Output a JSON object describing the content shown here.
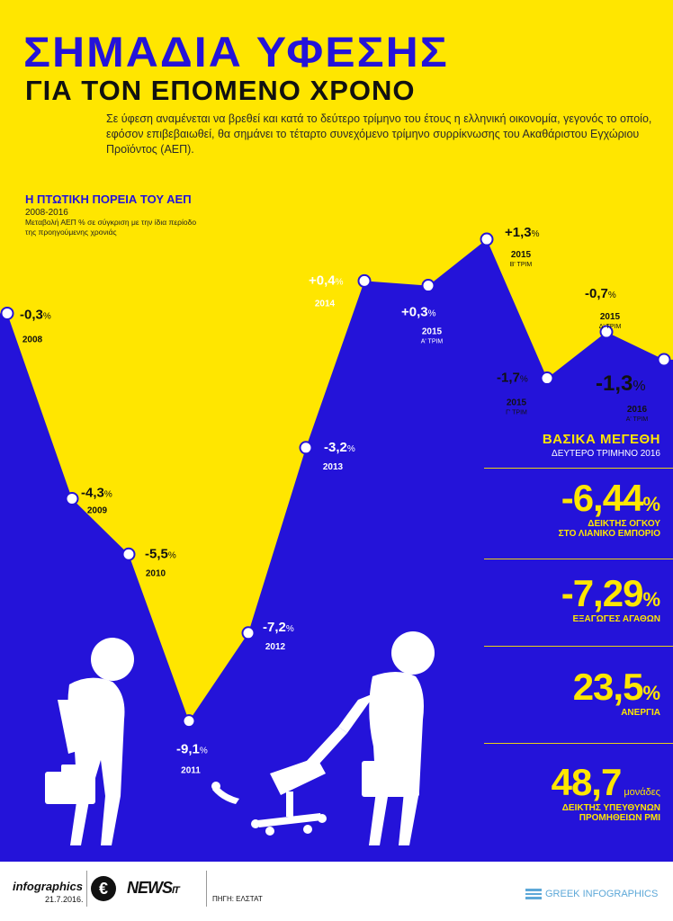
{
  "header": {
    "title_line1": "ΣΗΜΑΔΙΑ ΥΦΕΣΗΣ",
    "title_line2": "ΓΙΑ ΤΟΝ ΕΠΟΜΕΝΟ ΧΡΟΝΟ",
    "intro": "Σε ύφεση αναμένεται να βρεθεί και κατά το δεύτερο τρίμηνο του έτους η ελληνική οικονομία, γεγονός το οποίο, εφόσον επιβεβαιωθεί, θα σημάνει το τέταρτο συνεχόμενο τρίμηνο συρρίκνωσης του Ακαθάριστου Εγχώριου Προϊόντος (ΑΕΠ)."
  },
  "colors": {
    "yellow": "#ffe600",
    "blue": "#2413d9",
    "dark": "#111111",
    "white": "#ffffff"
  },
  "chart_data": {
    "type": "line",
    "title": "Η ΠΤΩΤΙΚΗ ΠΟΡΕΙΑ ΤΟΥ ΑΕΠ",
    "range_label": "2008-2016",
    "description": "Μεταβολή ΑΕΠ % σε σύγκριση με την ίδια περίοδο της προηγούμενης χρονιάς",
    "ylim": [
      -10,
      2
    ],
    "points": [
      {
        "value": -0.3,
        "label": "-0,3",
        "period": "2008",
        "quarter": ""
      },
      {
        "value": -4.3,
        "label": "-4,3",
        "period": "2009",
        "quarter": ""
      },
      {
        "value": -5.5,
        "label": "-5,5",
        "period": "2010",
        "quarter": ""
      },
      {
        "value": -9.1,
        "label": "-9,1",
        "period": "2011",
        "quarter": ""
      },
      {
        "value": -7.2,
        "label": "-7,2",
        "period": "2012",
        "quarter": ""
      },
      {
        "value": -3.2,
        "label": "-3,2",
        "period": "2013",
        "quarter": ""
      },
      {
        "value": 0.4,
        "label": "+0,4",
        "period": "2014",
        "quarter": ""
      },
      {
        "value": 0.3,
        "label": "+0,3",
        "period": "2015",
        "quarter": "Α' ΤΡΙΜ"
      },
      {
        "value": 1.3,
        "label": "+1,3",
        "period": "2015",
        "quarter": "Β' ΤΡΙΜ"
      },
      {
        "value": -1.7,
        "label": "-1,7",
        "period": "2015",
        "quarter": "Γ' ΤΡΙΜ"
      },
      {
        "value": -0.7,
        "label": "-0,7",
        "period": "2015",
        "quarter": "Δ' ΤΡΙΜ"
      },
      {
        "value": -1.3,
        "label": "-1,3",
        "period": "2016",
        "quarter": "Α' ΤΡΙΜ"
      }
    ],
    "percent_sign": "%"
  },
  "key_figures": {
    "title": "ΒΑΣΙΚΑ ΜΕΓΕΘΗ",
    "subtitle": "ΔΕΥΤΕΡΟ ΤΡΙΜΗΝΟ 2016",
    "items": [
      {
        "value": "-6,44",
        "unit": "%",
        "label1": "ΔΕΙΚΤΗΣ ΟΓΚΟΥ",
        "label2": "ΣΤΟ ΛΙΑΝΙΚΟ ΕΜΠΟΡΙΟ"
      },
      {
        "value": "-7,29",
        "unit": "%",
        "label1": "ΕΞΑΓΩΓΕΣ ΑΓΑΘΩΝ",
        "label2": ""
      },
      {
        "value": "23,5",
        "unit": "%",
        "label1": "ΑΝΕΡΓΙΑ",
        "label2": ""
      },
      {
        "value": "48,7",
        "unit": "μονάδες",
        "label1": "ΔΕΙΚΤΗΣ ΥΠΕΥΘΥΝΩΝ",
        "label2": "ΠΡΟΜΗΘΕΙΩΝ PMI"
      }
    ]
  },
  "footer": {
    "brand": "infographics",
    "date": "21.7.2016.",
    "euro": "€",
    "news": "NEWS",
    "news_suffix": "IT",
    "source": "ΠΗΓΗ: ΕΛΣΤΑΤ",
    "credit": "GREEK INFOGRAPHICS"
  }
}
